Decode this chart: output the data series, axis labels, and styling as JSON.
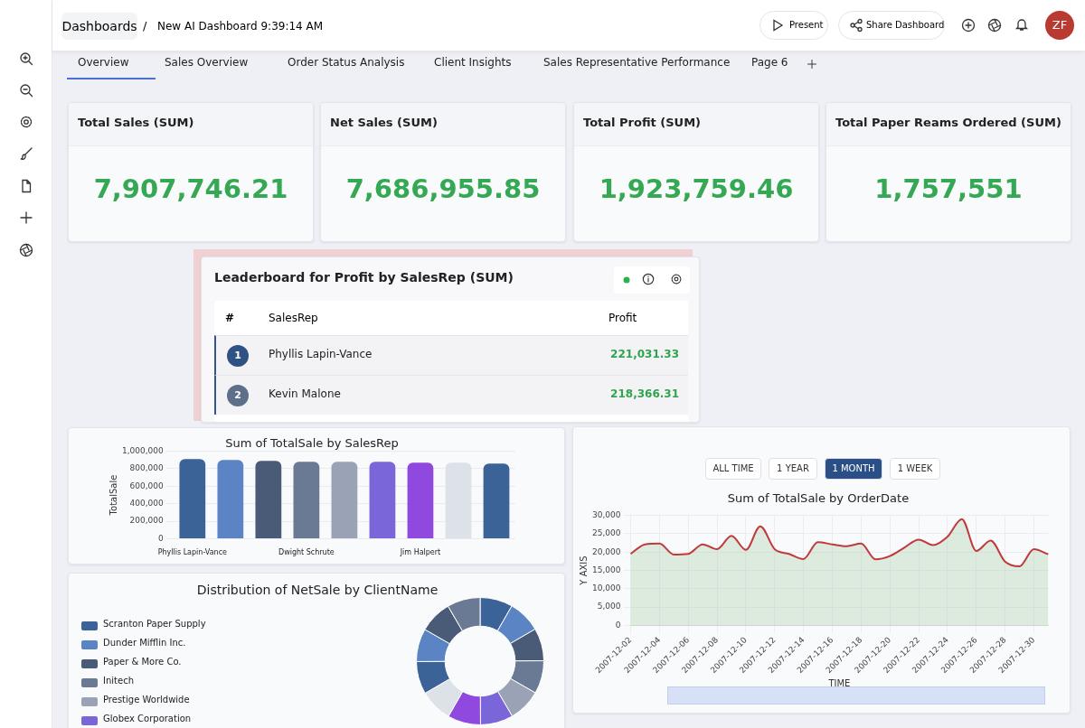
{
  "chart_data": [
    {
      "type": "other",
      "annotations": [
        "Dashboards",
        "/",
        "New AI Dashboard 9:39:14 AM",
        "Present",
        "Share Dashboard",
        "ZF",
        "Overview",
        "Sales Overview",
        "Order Status Analysis",
        "Client Insights",
        "Sales Representative Performance",
        "Page 6"
      ]
    },
    {
      "type": "other",
      "title": "Total Sales (SUM)",
      "annotations": [
        "7,907,746.21"
      ]
    },
    {
      "type": "other",
      "title": "Net Sales (SUM)",
      "annotations": [
        "7,686,955.85"
      ]
    },
    {
      "type": "other",
      "title": "Total Profit (SUM)",
      "annotations": [
        "1,923,759.46"
      ]
    },
    {
      "type": "other",
      "title": "Total Paper Reams Ordered (SUM)",
      "annotations": [
        "1,757,551"
      ]
    },
    {
      "type": "other",
      "title": "Leaderboard for Profit by SalesRep (SUM)",
      "annotations": [
        "#",
        "SalesRep",
        "Profit",
        "1",
        "Phyllis Lapin-Vance",
        "221,031.33",
        "2",
        "Kevin Malone",
        "218,366.31"
      ]
    },
    {
      "type": "bar",
      "title": "Sum of TotalSale by SalesRep",
      "ylabel": "TotalSale",
      "categories": [
        "Phyllis Lapin-Vance",
        null,
        null,
        "Dwight Schrute",
        null,
        null,
        "Jim Halpert",
        null,
        null
      ],
      "values": [
        910000,
        900000,
        890000,
        880000,
        880000,
        880000,
        870000,
        870000,
        860000
      ],
      "colors": [
        "#3b6398",
        "#5b84c4",
        "#4a5b78",
        "#6b7a94",
        "#9aa3b5",
        "#7a66d8",
        "#9049df",
        "#dde1e8",
        "#3b6398"
      ],
      "ylim": [
        0,
        1000000
      ],
      "yticks": [
        0,
        {
          "value": 200000,
          "label": "200,000"
        },
        {
          "value": 400000,
          "label": "400,000"
        },
        {
          "value": 600000,
          "label": "600,000"
        },
        {
          "value": 800000,
          "label": "800,000"
        },
        {
          "value": 1000000,
          "label": "1,000,000"
        }
      ],
      "grid": "y"
    },
    {
      "type": "area",
      "title": "Sum of TotalSale by OrderDate",
      "xlabel": "TIME",
      "ylabel": "Y AXIS",
      "annotations": [
        "ALL TIME",
        "1 YEAR",
        "1 MONTH",
        "1 WEEK"
      ],
      "categories": [
        "2007-12-02",
        null,
        "2007-12-04",
        null,
        "2007-12-06",
        null,
        "2007-12-08",
        null,
        "2007-12-10",
        null,
        "2007-12-12",
        null,
        "2007-12-14",
        null,
        "2007-12-16",
        null,
        "2007-12-18",
        null,
        "2007-12-20",
        null,
        "2007-12-22",
        null,
        "2007-12-24",
        null,
        "2007-12-26",
        null,
        "2007-12-28",
        null,
        "2007-12-30",
        null
      ],
      "series": [
        {
          "color": "#c0393b",
          "values": [
            19500,
            22100,
            22300,
            19300,
            19500,
            22100,
            20800,
            24400,
            20600,
            27000,
            20800,
            19500,
            18100,
            22700,
            22100,
            21600,
            22300,
            18000,
            18900,
            21200,
            23400,
            21900,
            24200,
            29000,
            20300,
            23100,
            17400,
            16100,
            20800,
            19400
          ]
        }
      ],
      "ylim": [
        0,
        30000
      ],
      "yticks": [
        0,
        {
          "value": 5000,
          "label": "5,000"
        },
        {
          "value": 10000,
          "label": "10,000"
        },
        {
          "value": 15000,
          "label": "15,000"
        },
        {
          "value": 20000,
          "label": "20,000"
        },
        {
          "value": 25000,
          "label": "25,000"
        },
        {
          "value": 30000,
          "label": "30,000"
        }
      ],
      "grid": true,
      "marker": "none"
    },
    {
      "type": "donut",
      "title": "Distribution of NetSale by ClientName",
      "legend": "left",
      "categories": [
        "Scranton Paper Supply",
        "Dunder Mifflin Inc.",
        "Paper & More Co.",
        "Initech",
        "Prestige Worldwide",
        "Globex Corporation",
        null,
        null,
        null,
        null,
        null,
        null
      ],
      "values": [
        8.3,
        8.3,
        8.3,
        8.4,
        8.3,
        8.3,
        8.4,
        8.3,
        8.3,
        8.4,
        8.3,
        8.4
      ],
      "colors": [
        "#3b6398",
        "#5b84c4",
        "#4a5b78",
        "#6b7a94",
        "#9aa3b5",
        "#7a66d8",
        "#9049df",
        "#dde1e8",
        "#3b6398",
        "#5b84c4",
        "#4a5b78",
        "#6b7a94"
      ]
    }
  ]
}
